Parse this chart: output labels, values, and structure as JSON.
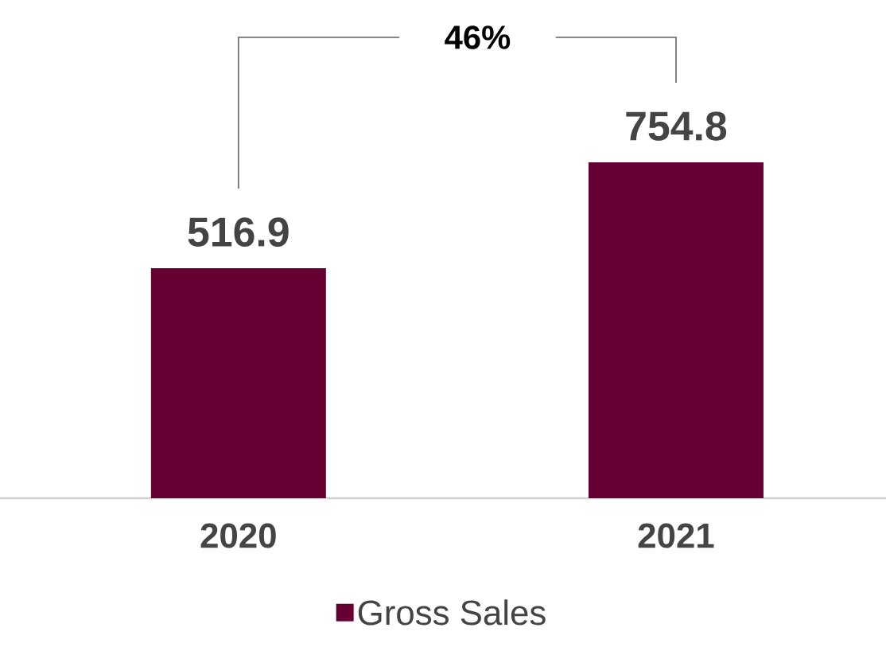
{
  "chart_data": {
    "type": "bar",
    "categories": [
      "2020",
      "2021"
    ],
    "series": [
      {
        "name": "Gross Sales",
        "color": "#660033",
        "values": [
          516.9,
          754.8
        ]
      }
    ],
    "data_labels": true,
    "legend": "bottom",
    "annotations": [
      "46%"
    ]
  }
}
